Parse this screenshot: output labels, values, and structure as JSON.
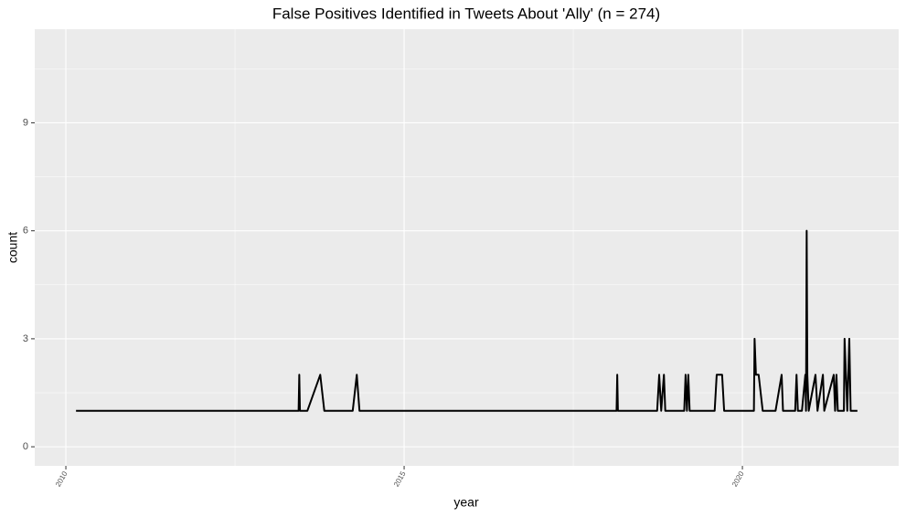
{
  "chart_data": {
    "type": "line",
    "title": "False Positives Identified in Tweets About 'Ally' (n = 274)",
    "x_label": "year",
    "y_label": "count",
    "xlim": [
      2009.54,
      2022.31
    ],
    "xticks": [
      2010,
      2015,
      2020
    ],
    "ylim": [
      -0.53,
      11.6
    ],
    "yticks": [
      0,
      3,
      6,
      9
    ],
    "grid": true,
    "series": [
      {
        "color": "#000000",
        "x": [
          2010.15,
          2013.44,
          2013.45,
          2013.46,
          2013.57,
          2013.76,
          2013.82,
          2014.24,
          2014.3,
          2014.34,
          2018.14,
          2018.15,
          2018.16,
          2018.74,
          2018.77,
          2018.8,
          2018.84,
          2018.86,
          2019.14,
          2019.16,
          2019.18,
          2019.2,
          2019.22,
          2019.59,
          2019.62,
          2019.7,
          2019.73,
          2020.17,
          2020.18,
          2020.2,
          2020.24,
          2020.3,
          2020.49,
          2020.58,
          2020.6,
          2020.78,
          2020.8,
          2020.82,
          2020.88,
          2020.93,
          2020.94,
          2020.95,
          2020.96,
          2020.98,
          2021.08,
          2021.11,
          2021.19,
          2021.21,
          2021.35,
          2021.37,
          2021.39,
          2021.41,
          2021.5,
          2021.51,
          2021.53,
          2021.55,
          2021.58,
          2021.6,
          2021.7
        ],
        "values": [
          1,
          1,
          2,
          1,
          1,
          2,
          1,
          1,
          2,
          1,
          1,
          2,
          1,
          1,
          2,
          1,
          2,
          1,
          1,
          2,
          1,
          2,
          1,
          1,
          2,
          2,
          1,
          1,
          3,
          2,
          2,
          1,
          1,
          2,
          1,
          1,
          2,
          1,
          1,
          2,
          1,
          6,
          2,
          1,
          2,
          1,
          2,
          1,
          2,
          1,
          2,
          1,
          1,
          3,
          2,
          1,
          3,
          1,
          1
        ]
      }
    ]
  }
}
